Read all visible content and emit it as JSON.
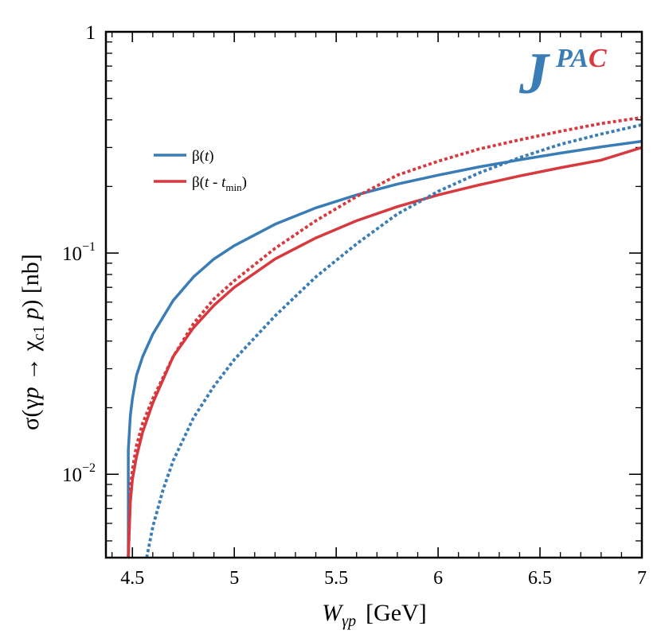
{
  "chart_data": {
    "type": "line",
    "title": "",
    "xlabel": {
      "main": "W",
      "sub": "γp",
      "unit": "[GeV]"
    },
    "ylabel": {
      "prefix": "σ(γ",
      "p1": "p",
      "arrow": " → χ",
      "sub": "c1",
      "p2": " p",
      "suffix": ")  [nb]"
    },
    "xlim": [
      4.37,
      7.0
    ],
    "ylim": [
      0.0042,
      1.0
    ],
    "yscale": "log",
    "xticks": [
      {
        "value": 4.5,
        "label": "4.5"
      },
      {
        "value": 5.0,
        "label": "5"
      },
      {
        "value": 5.5,
        "label": "5.5"
      },
      {
        "value": 6.0,
        "label": "6"
      },
      {
        "value": 6.5,
        "label": "6.5"
      },
      {
        "value": 7.0,
        "label": "7"
      }
    ],
    "yticks": [
      {
        "value": 1.0,
        "base": "1",
        "exp": ""
      },
      {
        "value": 0.1,
        "base": "10",
        "exp": "−1"
      },
      {
        "value": 0.01,
        "base": "10",
        "exp": "−2"
      }
    ],
    "legend": {
      "placement": "upper-left",
      "entries": [
        {
          "series": "beta-t",
          "parts": [
            [
              "β(",
              "n"
            ],
            [
              "t",
              "i"
            ],
            [
              ")",
              "n"
            ]
          ]
        },
        {
          "series": "beta-t-tmin",
          "parts": [
            [
              "β(",
              "n"
            ],
            [
              "t",
              "i"
            ],
            [
              " - ",
              "n"
            ],
            [
              "t",
              "i"
            ],
            [
              "min",
              "sub"
            ],
            [
              ")",
              "n"
            ]
          ]
        }
      ]
    },
    "logo": {
      "big": "J",
      "part1": "PA",
      "part2": "C",
      "color1": "#3a7db6",
      "color2": "#d7393e"
    },
    "series": [
      {
        "id": "beta-t-solid",
        "name": "β(t)",
        "color": "#3a7db6",
        "style": "solid",
        "x": [
          4.48,
          4.48,
          4.49,
          4.5,
          4.52,
          4.55,
          4.6,
          4.7,
          4.8,
          4.9,
          5.0,
          5.2,
          5.4,
          5.6,
          5.8,
          6.0,
          6.2,
          6.4,
          6.6,
          6.8,
          7.0
        ],
        "y": [
          0.0042,
          0.0128,
          0.0185,
          0.022,
          0.028,
          0.034,
          0.043,
          0.061,
          0.078,
          0.094,
          0.108,
          0.135,
          0.16,
          0.183,
          0.205,
          0.225,
          0.245,
          0.264,
          0.283,
          0.302,
          0.32
        ]
      },
      {
        "id": "beta-t-tmin-solid",
        "name": "β(t - t_min)",
        "color": "#d7393e",
        "style": "solid",
        "x": [
          4.48,
          4.49,
          4.5,
          4.52,
          4.55,
          4.6,
          4.7,
          4.8,
          4.9,
          5.0,
          5.2,
          5.4,
          5.6,
          5.8,
          6.0,
          6.2,
          6.4,
          6.6,
          6.8,
          7.0
        ],
        "y": [
          0.0042,
          0.0075,
          0.0095,
          0.012,
          0.0155,
          0.021,
          0.034,
          0.046,
          0.058,
          0.07,
          0.094,
          0.117,
          0.14,
          0.162,
          0.183,
          0.203,
          0.223,
          0.243,
          0.263,
          0.3
        ]
      },
      {
        "id": "beta-t-tmin-dotted",
        "name": "β(t - t_min) dotted",
        "color": "#d7393e",
        "style": "dotted",
        "x": [
          4.48,
          4.49,
          4.5,
          4.52,
          4.55,
          4.6,
          4.7,
          4.8,
          4.9,
          5.0,
          5.2,
          5.4,
          5.6,
          5.8,
          6.0,
          6.2,
          6.4,
          6.6,
          6.8,
          7.0
        ],
        "y": [
          0.0042,
          0.0086,
          0.0105,
          0.0135,
          0.017,
          0.022,
          0.034,
          0.048,
          0.062,
          0.075,
          0.105,
          0.14,
          0.18,
          0.225,
          0.26,
          0.295,
          0.325,
          0.355,
          0.385,
          0.41
        ]
      },
      {
        "id": "beta-t-dotted",
        "name": "β(t) dotted",
        "color": "#3a7db6",
        "style": "dotted",
        "x": [
          4.57,
          4.6,
          4.65,
          4.7,
          4.8,
          4.9,
          5.0,
          5.2,
          5.4,
          5.6,
          5.8,
          6.0,
          6.2,
          6.4,
          6.6,
          6.8,
          7.0
        ],
        "y": [
          0.0042,
          0.0058,
          0.0085,
          0.0115,
          0.018,
          0.025,
          0.033,
          0.052,
          0.078,
          0.11,
          0.15,
          0.19,
          0.23,
          0.27,
          0.31,
          0.345,
          0.38
        ]
      }
    ]
  }
}
